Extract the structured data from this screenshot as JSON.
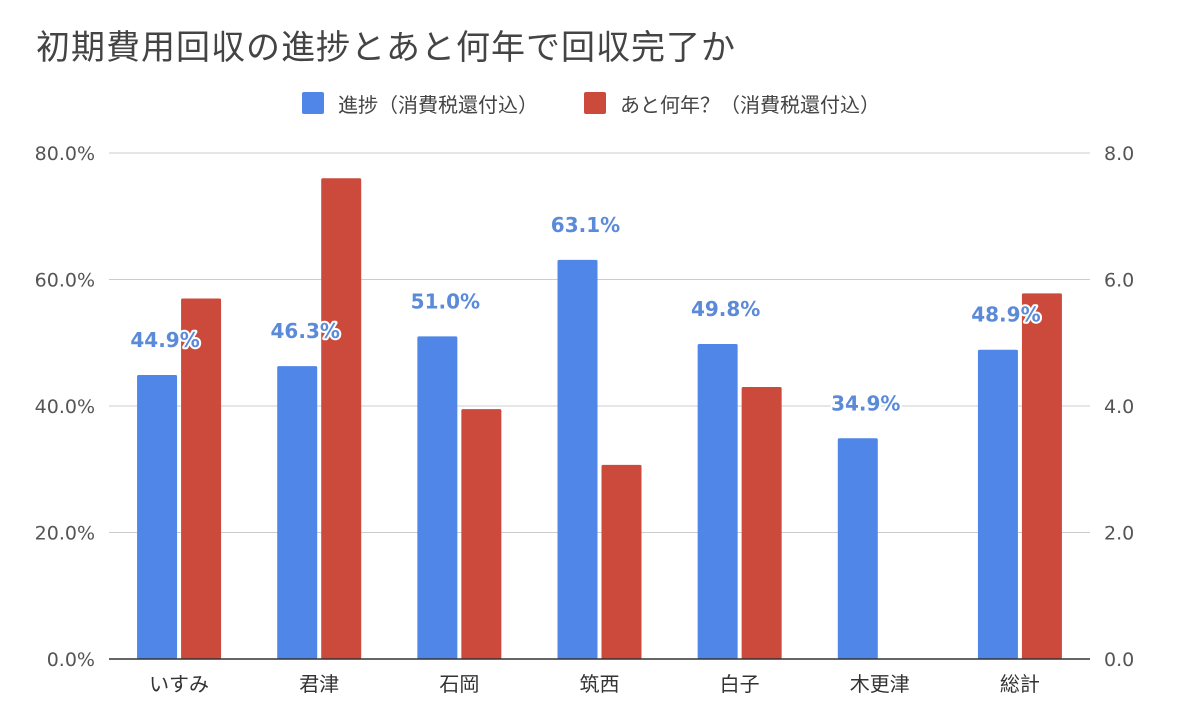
{
  "chart_data": {
    "type": "bar",
    "title": "初期費用回収の進捗とあと何年で回収完了か",
    "categories": [
      "いすみ",
      "君津",
      "石岡",
      "筑西",
      "白子",
      "木更津",
      "総計"
    ],
    "series": [
      {
        "name": "進捗（消費税還付込）",
        "axis": "left",
        "color": "#4f86e8",
        "values": [
          0.449,
          0.463,
          0.51,
          0.631,
          0.498,
          0.349,
          0.489
        ],
        "labels": [
          "44.9%",
          "46.3%",
          "51.0%",
          "63.1%",
          "49.8%",
          "34.9%",
          "48.9%"
        ]
      },
      {
        "name": "あと何年？（消費税還付込）",
        "axis": "right",
        "color": "#cc4a3b",
        "values": [
          5.7,
          7.6,
          3.95,
          3.07,
          4.3,
          null,
          5.78
        ]
      }
    ],
    "y_left": {
      "min": 0,
      "max": 0.8,
      "ticks": [
        "0.0%",
        "20.0%",
        "40.0%",
        "60.0%",
        "80.0%"
      ],
      "tick_values": [
        0,
        0.2,
        0.4,
        0.6,
        0.8
      ]
    },
    "y_right": {
      "min": 0,
      "max": 8,
      "ticks": [
        "0.0",
        "2.0",
        "4.0",
        "6.0",
        "8.0"
      ],
      "tick_values": [
        0,
        2,
        4,
        6,
        8
      ]
    },
    "grid": true,
    "legend_position": "top"
  }
}
